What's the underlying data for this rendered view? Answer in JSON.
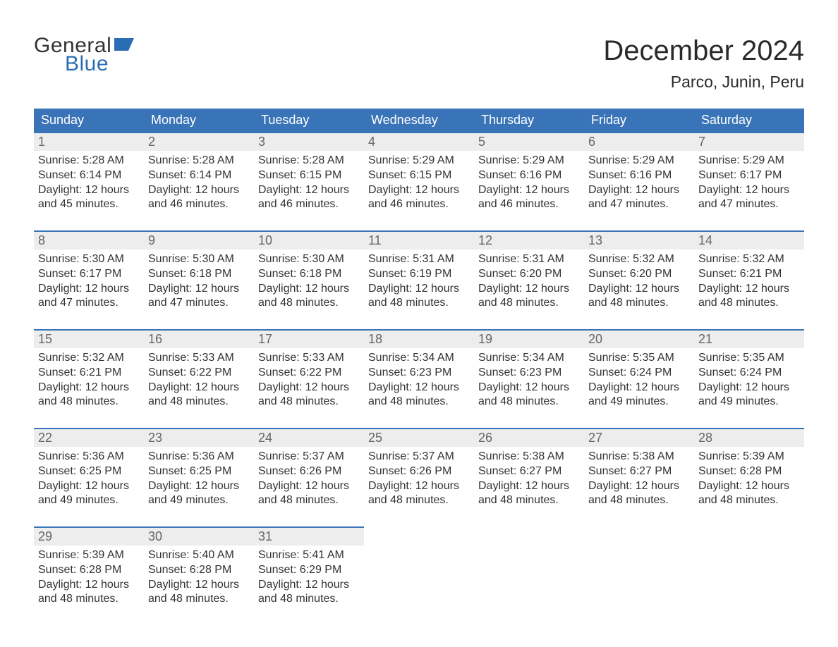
{
  "brand": {
    "word1": "General",
    "word2": "Blue",
    "flag_color": "#2b6db5",
    "text_color": "#333333"
  },
  "title": {
    "month": "December 2024",
    "location": "Parco, Junin, Peru"
  },
  "colors": {
    "header_bg": "#3a74b8",
    "header_text": "#ffffff",
    "daynum_bg": "#ededed",
    "daynum_border": "#3a74b8",
    "body_text": "#333333",
    "daynum_text": "#666666",
    "background": "#ffffff"
  },
  "weekdays": [
    "Sunday",
    "Monday",
    "Tuesday",
    "Wednesday",
    "Thursday",
    "Friday",
    "Saturday"
  ],
  "weeks": [
    [
      {
        "n": "1",
        "sunrise": "5:28 AM",
        "sunset": "6:14 PM",
        "dl1": "12 hours",
        "dl2": "and 45 minutes."
      },
      {
        "n": "2",
        "sunrise": "5:28 AM",
        "sunset": "6:14 PM",
        "dl1": "12 hours",
        "dl2": "and 46 minutes."
      },
      {
        "n": "3",
        "sunrise": "5:28 AM",
        "sunset": "6:15 PM",
        "dl1": "12 hours",
        "dl2": "and 46 minutes."
      },
      {
        "n": "4",
        "sunrise": "5:29 AM",
        "sunset": "6:15 PM",
        "dl1": "12 hours",
        "dl2": "and 46 minutes."
      },
      {
        "n": "5",
        "sunrise": "5:29 AM",
        "sunset": "6:16 PM",
        "dl1": "12 hours",
        "dl2": "and 46 minutes."
      },
      {
        "n": "6",
        "sunrise": "5:29 AM",
        "sunset": "6:16 PM",
        "dl1": "12 hours",
        "dl2": "and 47 minutes."
      },
      {
        "n": "7",
        "sunrise": "5:29 AM",
        "sunset": "6:17 PM",
        "dl1": "12 hours",
        "dl2": "and 47 minutes."
      }
    ],
    [
      {
        "n": "8",
        "sunrise": "5:30 AM",
        "sunset": "6:17 PM",
        "dl1": "12 hours",
        "dl2": "and 47 minutes."
      },
      {
        "n": "9",
        "sunrise": "5:30 AM",
        "sunset": "6:18 PM",
        "dl1": "12 hours",
        "dl2": "and 47 minutes."
      },
      {
        "n": "10",
        "sunrise": "5:30 AM",
        "sunset": "6:18 PM",
        "dl1": "12 hours",
        "dl2": "and 48 minutes."
      },
      {
        "n": "11",
        "sunrise": "5:31 AM",
        "sunset": "6:19 PM",
        "dl1": "12 hours",
        "dl2": "and 48 minutes."
      },
      {
        "n": "12",
        "sunrise": "5:31 AM",
        "sunset": "6:20 PM",
        "dl1": "12 hours",
        "dl2": "and 48 minutes."
      },
      {
        "n": "13",
        "sunrise": "5:32 AM",
        "sunset": "6:20 PM",
        "dl1": "12 hours",
        "dl2": "and 48 minutes."
      },
      {
        "n": "14",
        "sunrise": "5:32 AM",
        "sunset": "6:21 PM",
        "dl1": "12 hours",
        "dl2": "and 48 minutes."
      }
    ],
    [
      {
        "n": "15",
        "sunrise": "5:32 AM",
        "sunset": "6:21 PM",
        "dl1": "12 hours",
        "dl2": "and 48 minutes."
      },
      {
        "n": "16",
        "sunrise": "5:33 AM",
        "sunset": "6:22 PM",
        "dl1": "12 hours",
        "dl2": "and 48 minutes."
      },
      {
        "n": "17",
        "sunrise": "5:33 AM",
        "sunset": "6:22 PM",
        "dl1": "12 hours",
        "dl2": "and 48 minutes."
      },
      {
        "n": "18",
        "sunrise": "5:34 AM",
        "sunset": "6:23 PM",
        "dl1": "12 hours",
        "dl2": "and 48 minutes."
      },
      {
        "n": "19",
        "sunrise": "5:34 AM",
        "sunset": "6:23 PM",
        "dl1": "12 hours",
        "dl2": "and 48 minutes."
      },
      {
        "n": "20",
        "sunrise": "5:35 AM",
        "sunset": "6:24 PM",
        "dl1": "12 hours",
        "dl2": "and 49 minutes."
      },
      {
        "n": "21",
        "sunrise": "5:35 AM",
        "sunset": "6:24 PM",
        "dl1": "12 hours",
        "dl2": "and 49 minutes."
      }
    ],
    [
      {
        "n": "22",
        "sunrise": "5:36 AM",
        "sunset": "6:25 PM",
        "dl1": "12 hours",
        "dl2": "and 49 minutes."
      },
      {
        "n": "23",
        "sunrise": "5:36 AM",
        "sunset": "6:25 PM",
        "dl1": "12 hours",
        "dl2": "and 49 minutes."
      },
      {
        "n": "24",
        "sunrise": "5:37 AM",
        "sunset": "6:26 PM",
        "dl1": "12 hours",
        "dl2": "and 48 minutes."
      },
      {
        "n": "25",
        "sunrise": "5:37 AM",
        "sunset": "6:26 PM",
        "dl1": "12 hours",
        "dl2": "and 48 minutes."
      },
      {
        "n": "26",
        "sunrise": "5:38 AM",
        "sunset": "6:27 PM",
        "dl1": "12 hours",
        "dl2": "and 48 minutes."
      },
      {
        "n": "27",
        "sunrise": "5:38 AM",
        "sunset": "6:27 PM",
        "dl1": "12 hours",
        "dl2": "and 48 minutes."
      },
      {
        "n": "28",
        "sunrise": "5:39 AM",
        "sunset": "6:28 PM",
        "dl1": "12 hours",
        "dl2": "and 48 minutes."
      }
    ],
    [
      {
        "n": "29",
        "sunrise": "5:39 AM",
        "sunset": "6:28 PM",
        "dl1": "12 hours",
        "dl2": "and 48 minutes."
      },
      {
        "n": "30",
        "sunrise": "5:40 AM",
        "sunset": "6:28 PM",
        "dl1": "12 hours",
        "dl2": "and 48 minutes."
      },
      {
        "n": "31",
        "sunrise": "5:41 AM",
        "sunset": "6:29 PM",
        "dl1": "12 hours",
        "dl2": "and 48 minutes."
      },
      null,
      null,
      null,
      null
    ]
  ],
  "labels": {
    "sunrise": "Sunrise: ",
    "sunset": "Sunset: ",
    "daylight": "Daylight: "
  }
}
